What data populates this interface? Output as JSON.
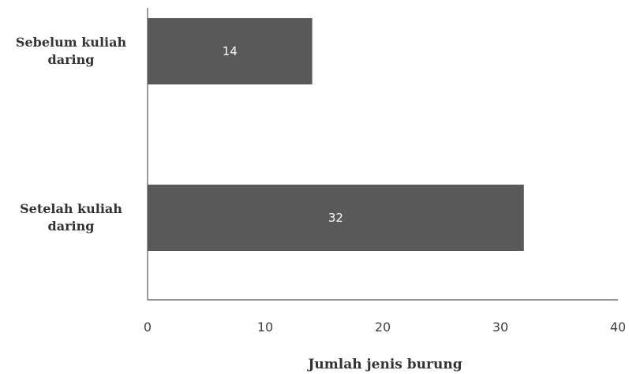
{
  "chart_data": {
    "type": "bar",
    "orientation": "horizontal",
    "categories": [
      [
        "Sebelum kuliah",
        "daring"
      ],
      [
        "Setelah kuliah",
        "daring"
      ]
    ],
    "values": [
      14,
      32
    ],
    "data_labels": [
      "14",
      "32"
    ],
    "xlabel": "Jumlah jenis burung",
    "ylabel": "",
    "title": "",
    "xlim": [
      0,
      40
    ],
    "xticks": [
      "0",
      "10",
      "20",
      "30",
      "40"
    ],
    "grid": false,
    "legend": "none",
    "bar_color": "#595959",
    "data_label_color": "#ffffff"
  }
}
